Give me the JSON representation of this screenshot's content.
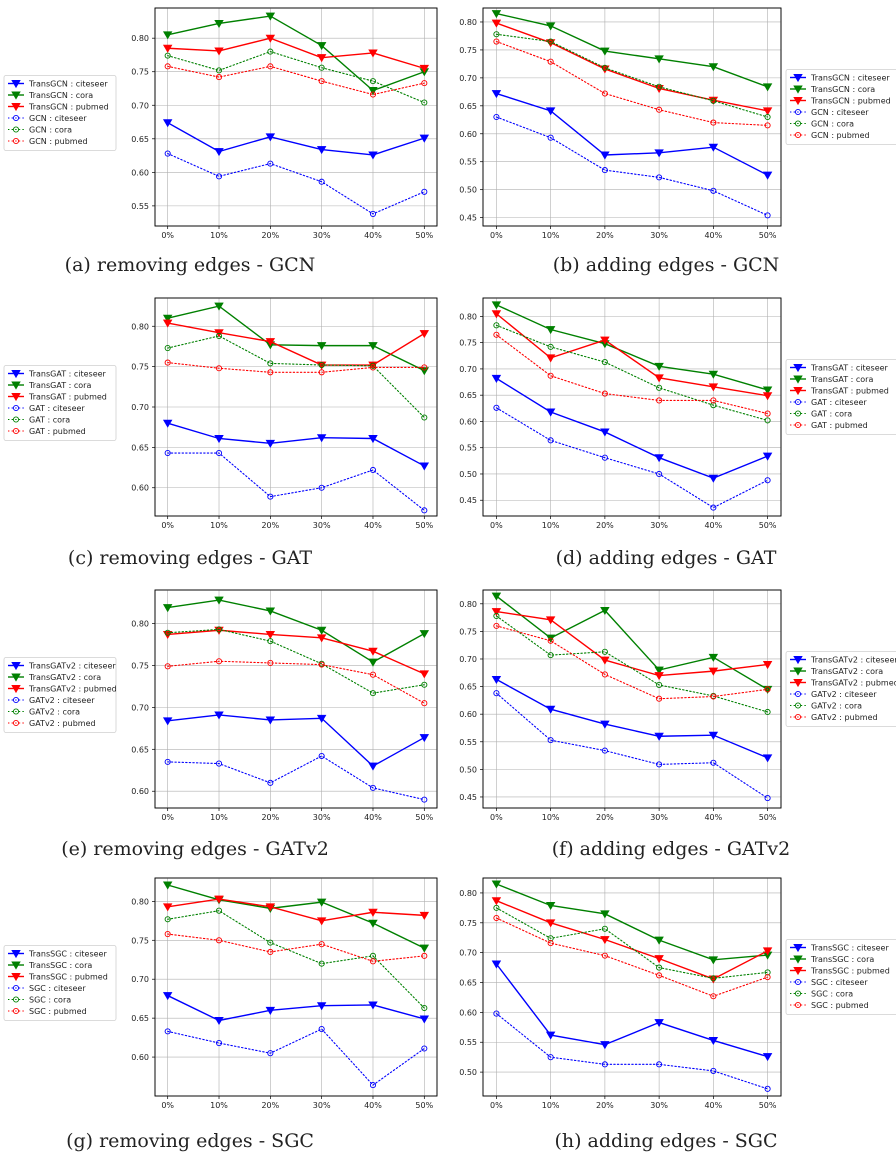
{
  "chart_data": [
    {
      "id": "a",
      "type": "line",
      "caption": "(a) removing edges - GCN",
      "categories": [
        "0%",
        "10%",
        "20%",
        "30%",
        "40%",
        "50%"
      ],
      "ylim": [
        0.52,
        0.845
      ],
      "yticks": [
        0.55,
        0.6,
        0.65,
        0.7,
        0.75,
        0.8
      ],
      "legend": "left",
      "series": [
        {
          "name": "TransGCN : citeseer",
          "color": "#0000ff",
          "style": "solid",
          "marker": "tri",
          "values": [
            0.674,
            0.631,
            0.653,
            0.634,
            0.626,
            0.651
          ]
        },
        {
          "name": "TransGCN : cora",
          "color": "#008000",
          "style": "solid",
          "marker": "tri",
          "values": [
            0.805,
            0.822,
            0.833,
            0.789,
            0.722,
            0.75
          ]
        },
        {
          "name": "TransGCN : pubmed",
          "color": "#ff0000",
          "style": "solid",
          "marker": "tri",
          "values": [
            0.785,
            0.781,
            0.8,
            0.771,
            0.778,
            0.755
          ]
        },
        {
          "name": "GCN : citeseer",
          "color": "#0000ff",
          "style": "dotted",
          "marker": "circle",
          "values": [
            0.628,
            0.594,
            0.613,
            0.586,
            0.538,
            0.571
          ]
        },
        {
          "name": "GCN : cora",
          "color": "#008000",
          "style": "dotted",
          "marker": "circle",
          "values": [
            0.774,
            0.752,
            0.78,
            0.756,
            0.736,
            0.704
          ]
        },
        {
          "name": "GCN : pubmed",
          "color": "#ff0000",
          "style": "dotted",
          "marker": "circle",
          "values": [
            0.758,
            0.742,
            0.758,
            0.736,
            0.716,
            0.733
          ]
        }
      ]
    },
    {
      "id": "b",
      "type": "line",
      "caption": "(b) adding edges - GCN",
      "categories": [
        "0%",
        "10%",
        "20%",
        "30%",
        "40%",
        "50%"
      ],
      "ylim": [
        0.435,
        0.825
      ],
      "yticks": [
        0.45,
        0.5,
        0.55,
        0.6,
        0.65,
        0.7,
        0.75,
        0.8
      ],
      "legend": "right",
      "series": [
        {
          "name": "TransGCN : citeseer",
          "color": "#0000ff",
          "style": "solid",
          "marker": "tri",
          "values": [
            0.672,
            0.641,
            0.562,
            0.566,
            0.576,
            0.526
          ]
        },
        {
          "name": "TransGCN : cora",
          "color": "#008000",
          "style": "solid",
          "marker": "tri",
          "values": [
            0.815,
            0.793,
            0.748,
            0.734,
            0.72,
            0.684
          ]
        },
        {
          "name": "TransGCN : pubmed",
          "color": "#ff0000",
          "style": "solid",
          "marker": "tri",
          "values": [
            0.798,
            0.763,
            0.716,
            0.681,
            0.66,
            0.641
          ]
        },
        {
          "name": "GCN : citeseer",
          "color": "#0000ff",
          "style": "dotted",
          "marker": "circle",
          "values": [
            0.63,
            0.593,
            0.535,
            0.522,
            0.498,
            0.454
          ]
        },
        {
          "name": "GCN : cora",
          "color": "#008000",
          "style": "dotted",
          "marker": "circle",
          "values": [
            0.778,
            0.765,
            0.718,
            0.684,
            0.659,
            0.63
          ]
        },
        {
          "name": "GCN : pubmed",
          "color": "#ff0000",
          "style": "dotted",
          "marker": "circle",
          "values": [
            0.765,
            0.729,
            0.672,
            0.643,
            0.62,
            0.615
          ]
        }
      ]
    },
    {
      "id": "c",
      "type": "line",
      "caption": "(c) removing edges - GAT",
      "categories": [
        "0%",
        "10%",
        "20%",
        "30%",
        "40%",
        "50%"
      ],
      "ylim": [
        0.565,
        0.835
      ],
      "yticks": [
        0.6,
        0.65,
        0.7,
        0.75,
        0.8
      ],
      "legend": "left",
      "series": [
        {
          "name": "TransGAT : citeseer",
          "color": "#0000ff",
          "style": "solid",
          "marker": "tri",
          "values": [
            0.68,
            0.661,
            0.655,
            0.662,
            0.661,
            0.627
          ]
        },
        {
          "name": "TransGAT : cora",
          "color": "#008000",
          "style": "solid",
          "marker": "tri",
          "values": [
            0.81,
            0.825,
            0.777,
            0.776,
            0.776,
            0.745
          ]
        },
        {
          "name": "TransGAT : pubmed",
          "color": "#ff0000",
          "style": "solid",
          "marker": "tri",
          "values": [
            0.804,
            0.792,
            0.781,
            0.752,
            0.752,
            0.791
          ]
        },
        {
          "name": "GAT : citeseer",
          "color": "#0000ff",
          "style": "dotted",
          "marker": "circle",
          "values": [
            0.643,
            0.643,
            0.589,
            0.6,
            0.622,
            0.572
          ]
        },
        {
          "name": "GAT : cora",
          "color": "#008000",
          "style": "dotted",
          "marker": "circle",
          "values": [
            0.773,
            0.788,
            0.754,
            0.752,
            0.751,
            0.687
          ]
        },
        {
          "name": "GAT : pubmed",
          "color": "#ff0000",
          "style": "dotted",
          "marker": "circle",
          "values": [
            0.755,
            0.748,
            0.743,
            0.743,
            0.749,
            0.749
          ]
        }
      ]
    },
    {
      "id": "d",
      "type": "line",
      "caption": "(d) adding edges - GAT",
      "categories": [
        "0%",
        "10%",
        "20%",
        "30%",
        "40%",
        "50%"
      ],
      "ylim": [
        0.42,
        0.835
      ],
      "yticks": [
        0.45,
        0.5,
        0.55,
        0.6,
        0.65,
        0.7,
        0.75,
        0.8
      ],
      "legend": "right",
      "series": [
        {
          "name": "TransGAT : citeseer",
          "color": "#0000ff",
          "style": "solid",
          "marker": "tri",
          "values": [
            0.682,
            0.618,
            0.58,
            0.531,
            0.492,
            0.534
          ]
        },
        {
          "name": "TransGAT : cora",
          "color": "#008000",
          "style": "solid",
          "marker": "tri",
          "values": [
            0.822,
            0.775,
            0.748,
            0.705,
            0.69,
            0.66
          ]
        },
        {
          "name": "TransGAT : pubmed",
          "color": "#ff0000",
          "style": "solid",
          "marker": "tri",
          "values": [
            0.805,
            0.721,
            0.755,
            0.683,
            0.666,
            0.649
          ]
        },
        {
          "name": "GAT : citeseer",
          "color": "#0000ff",
          "style": "dotted",
          "marker": "circle",
          "values": [
            0.626,
            0.564,
            0.531,
            0.5,
            0.436,
            0.488
          ]
        },
        {
          "name": "GAT : cora",
          "color": "#008000",
          "style": "dotted",
          "marker": "circle",
          "values": [
            0.783,
            0.742,
            0.713,
            0.664,
            0.631,
            0.602
          ]
        },
        {
          "name": "GAT : pubmed",
          "color": "#ff0000",
          "style": "dotted",
          "marker": "circle",
          "values": [
            0.765,
            0.687,
            0.653,
            0.64,
            0.64,
            0.615
          ]
        }
      ]
    },
    {
      "id": "e",
      "type": "line",
      "caption": "(e) removing edges - GATv2",
      "categories": [
        "0%",
        "10%",
        "20%",
        "30%",
        "40%",
        "50%"
      ],
      "ylim": [
        0.58,
        0.84
      ],
      "yticks": [
        0.6,
        0.65,
        0.7,
        0.75,
        0.8
      ],
      "legend": "left",
      "series": [
        {
          "name": "TransGATv2 : citeseer",
          "color": "#0000ff",
          "style": "solid",
          "marker": "tri",
          "values": [
            0.684,
            0.691,
            0.685,
            0.687,
            0.63,
            0.664
          ]
        },
        {
          "name": "TransGATv2 : cora",
          "color": "#008000",
          "style": "solid",
          "marker": "tri",
          "values": [
            0.819,
            0.828,
            0.815,
            0.792,
            0.754,
            0.788
          ]
        },
        {
          "name": "TransGATv2 : pubmed",
          "color": "#ff0000",
          "style": "solid",
          "marker": "tri",
          "values": [
            0.787,
            0.792,
            0.787,
            0.783,
            0.767,
            0.74
          ]
        },
        {
          "name": "GATv2 : citeseer",
          "color": "#0000ff",
          "style": "dotted",
          "marker": "circle",
          "values": [
            0.635,
            0.633,
            0.61,
            0.642,
            0.604,
            0.59
          ]
        },
        {
          "name": "GATv2 : cora",
          "color": "#008000",
          "style": "dotted",
          "marker": "circle",
          "values": [
            0.789,
            0.793,
            0.779,
            0.752,
            0.717,
            0.727
          ]
        },
        {
          "name": "GATv2 : pubmed",
          "color": "#ff0000",
          "style": "dotted",
          "marker": "circle",
          "values": [
            0.749,
            0.755,
            0.753,
            0.751,
            0.739,
            0.705
          ]
        }
      ]
    },
    {
      "id": "f",
      "type": "line",
      "caption": "(f) adding edges - GATv2",
      "categories": [
        "0%",
        "10%",
        "20%",
        "30%",
        "40%",
        "50%"
      ],
      "ylim": [
        0.43,
        0.825
      ],
      "yticks": [
        0.45,
        0.5,
        0.55,
        0.6,
        0.65,
        0.7,
        0.75,
        0.8
      ],
      "legend": "right",
      "series": [
        {
          "name": "TransGATv2 : citeseer",
          "color": "#0000ff",
          "style": "solid",
          "marker": "tri",
          "values": [
            0.663,
            0.609,
            0.582,
            0.56,
            0.562,
            0.521
          ]
        },
        {
          "name": "TransGATv2 : cora",
          "color": "#008000",
          "style": "solid",
          "marker": "tri",
          "values": [
            0.814,
            0.738,
            0.788,
            0.68,
            0.703,
            0.645
          ]
        },
        {
          "name": "TransGATv2 : pubmed",
          "color": "#ff0000",
          "style": "solid",
          "marker": "tri",
          "values": [
            0.786,
            0.771,
            0.698,
            0.67,
            0.678,
            0.69
          ]
        },
        {
          "name": "GATv2 : citeseer",
          "color": "#0000ff",
          "style": "dotted",
          "marker": "circle",
          "values": [
            0.638,
            0.553,
            0.534,
            0.509,
            0.512,
            0.448
          ]
        },
        {
          "name": "GATv2 : cora",
          "color": "#008000",
          "style": "dotted",
          "marker": "circle",
          "values": [
            0.778,
            0.707,
            0.713,
            0.653,
            0.633,
            0.604
          ]
        },
        {
          "name": "GATv2 : pubmed",
          "color": "#ff0000",
          "style": "dotted",
          "marker": "circle",
          "values": [
            0.76,
            0.733,
            0.672,
            0.628,
            0.632,
            0.645
          ]
        }
      ]
    },
    {
      "id": "g",
      "type": "line",
      "caption": "(g) removing edges - SGC",
      "categories": [
        "0%",
        "10%",
        "20%",
        "30%",
        "40%",
        "50%"
      ],
      "ylim": [
        0.55,
        0.83
      ],
      "yticks": [
        0.6,
        0.65,
        0.7,
        0.75,
        0.8
      ],
      "legend": "left",
      "series": [
        {
          "name": "TransSGC : citeseer",
          "color": "#0000ff",
          "style": "solid",
          "marker": "tri",
          "values": [
            0.679,
            0.647,
            0.66,
            0.666,
            0.667,
            0.649
          ]
        },
        {
          "name": "TransSGC : cora",
          "color": "#008000",
          "style": "solid",
          "marker": "tri",
          "values": [
            0.821,
            0.802,
            0.791,
            0.799,
            0.772,
            0.74
          ]
        },
        {
          "name": "TransSGC : pubmed",
          "color": "#ff0000",
          "style": "solid",
          "marker": "tri",
          "values": [
            0.793,
            0.803,
            0.793,
            0.775,
            0.786,
            0.782
          ]
        },
        {
          "name": "SGC : citeseer",
          "color": "#0000ff",
          "style": "dotted",
          "marker": "circle",
          "values": [
            0.633,
            0.618,
            0.605,
            0.636,
            0.564,
            0.611
          ]
        },
        {
          "name": "SGC : cora",
          "color": "#008000",
          "style": "dotted",
          "marker": "circle",
          "values": [
            0.777,
            0.788,
            0.747,
            0.72,
            0.73,
            0.663
          ]
        },
        {
          "name": "SGC : pubmed",
          "color": "#ff0000",
          "style": "dotted",
          "marker": "circle",
          "values": [
            0.758,
            0.75,
            0.735,
            0.745,
            0.723,
            0.73
          ]
        }
      ]
    },
    {
      "id": "h",
      "type": "line",
      "caption": "(h) adding edges - SGC",
      "categories": [
        "0%",
        "10%",
        "20%",
        "30%",
        "40%",
        "50%"
      ],
      "ylim": [
        0.46,
        0.825
      ],
      "yticks": [
        0.5,
        0.55,
        0.6,
        0.65,
        0.7,
        0.75,
        0.8
      ],
      "legend": "right",
      "series": [
        {
          "name": "TransSGC : citeseer",
          "color": "#0000ff",
          "style": "solid",
          "marker": "tri",
          "values": [
            0.681,
            0.562,
            0.546,
            0.583,
            0.553,
            0.526
          ]
        },
        {
          "name": "TransSGC : cora",
          "color": "#008000",
          "style": "solid",
          "marker": "tri",
          "values": [
            0.815,
            0.779,
            0.765,
            0.721,
            0.688,
            0.696
          ]
        },
        {
          "name": "TransSGC : pubmed",
          "color": "#ff0000",
          "style": "solid",
          "marker": "tri",
          "values": [
            0.787,
            0.75,
            0.722,
            0.69,
            0.656,
            0.703
          ]
        },
        {
          "name": "SGC : citeseer",
          "color": "#0000ff",
          "style": "dotted",
          "marker": "circle",
          "values": [
            0.598,
            0.525,
            0.513,
            0.513,
            0.502,
            0.472
          ]
        },
        {
          "name": "SGC : cora",
          "color": "#008000",
          "style": "dotted",
          "marker": "circle",
          "values": [
            0.775,
            0.724,
            0.74,
            0.675,
            0.657,
            0.667
          ]
        },
        {
          "name": "SGC : pubmed",
          "color": "#ff0000",
          "style": "dotted",
          "marker": "circle",
          "values": [
            0.758,
            0.716,
            0.695,
            0.662,
            0.627,
            0.659
          ]
        }
      ]
    }
  ]
}
